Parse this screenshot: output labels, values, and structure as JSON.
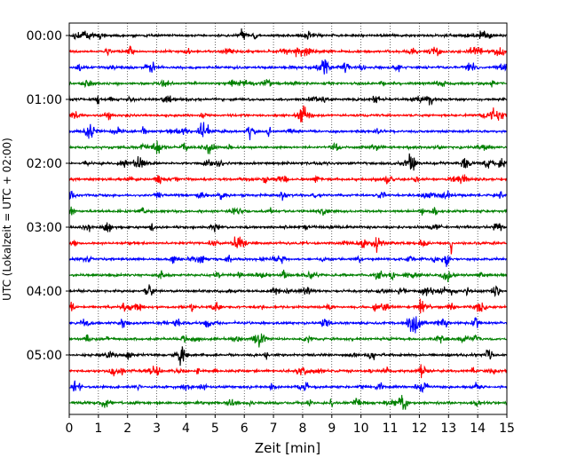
{
  "chart_data": {
    "type": "line",
    "title": "",
    "xlabel": "Zeit  [min]",
    "ylabel": "UTC (Lokalzeit = UTC + 02:00)",
    "xlim": [
      0,
      15
    ],
    "x_ticks": [
      "0",
      "1",
      "2",
      "3",
      "4",
      "5",
      "6",
      "7",
      "8",
      "9",
      "10",
      "11",
      "12",
      "13",
      "14",
      "15"
    ],
    "y_tick_labels": [
      "00:00",
      "01:00",
      "02:00",
      "03:00",
      "04:00",
      "05:00"
    ],
    "grid": "vertical dotted lines at each minute",
    "trace_interval_minutes": 15,
    "trace_colors": [
      "#000000",
      "#ff0000",
      "#0000ff",
      "#008000"
    ],
    "trace_start_times": [
      "00:00",
      "00:15",
      "00:30",
      "00:45",
      "01:00",
      "01:15",
      "01:30",
      "01:45",
      "02:00",
      "02:15",
      "02:30",
      "02:45",
      "03:00",
      "03:15",
      "03:30",
      "03:45",
      "04:00",
      "04:15",
      "04:30",
      "04:45",
      "05:00",
      "05:15",
      "05:30",
      "05:45"
    ],
    "notable_events": [
      {
        "trace": "03:15",
        "minute": 13.1,
        "description": "large spike"
      },
      {
        "trace": "00:00",
        "minute": 14.1,
        "description": "burst"
      }
    ]
  }
}
